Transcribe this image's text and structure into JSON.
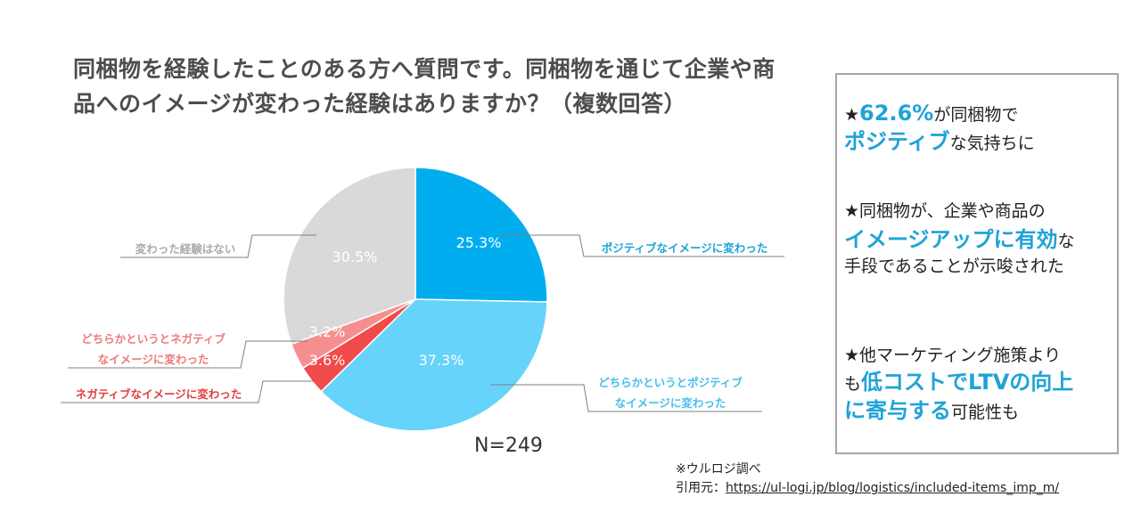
{
  "title": "同梱物を経験したことのある方へ質問です。同梱物を通じて企業や商品へのイメージが変わった経験はありますか？（複数回答）",
  "chart_data": {
    "type": "pie",
    "title": "同梱物を経験したことのある方へ質問です。同梱物を通じて企業や商品へのイメージが変わった経験はありますか？（複数回答）",
    "slices": [
      {
        "label_lines": [
          "ポジティブなイメージに変わった"
        ],
        "value": 25.3,
        "value_label": "25.3%",
        "color": "#00aeef",
        "label_color": "#1ea3d8",
        "side": "right"
      },
      {
        "label_lines": [
          "どちらかというとポジティブ",
          "なイメージに変わった"
        ],
        "value": 37.3,
        "value_label": "37.3%",
        "color": "#66d3fa",
        "label_color": "#46bfea",
        "side": "right"
      },
      {
        "label_lines": [
          "ネガティブなイメージに変わった"
        ],
        "value": 3.6,
        "value_label": "3.6%",
        "color": "#f14a4a",
        "label_color": "#e33c3c",
        "side": "left"
      },
      {
        "label_lines": [
          "どちらかというとネガティブ",
          "なイメージに変わった"
        ],
        "value": 3.2,
        "value_label": "3.2%",
        "color": "#f58f8f",
        "label_color": "#ee7a7a",
        "side": "left"
      },
      {
        "label_lines": [
          "変わった経験はない"
        ],
        "value": 30.5,
        "value_label": "30.5%",
        "color": "#d9d9d9",
        "label_color": "#aaaaaa",
        "side": "left"
      }
    ],
    "n_label": "N=249"
  },
  "source": {
    "line1": "※ウルロジ調べ",
    "prefix": "引用元：",
    "url": "https://ul-logi.jp/blog/logistics/included-items_imp_m/"
  },
  "summary": {
    "p1": {
      "star": "★",
      "pct": "62.6%",
      "rest1": "が同梱物で",
      "positive": "ポジティブ",
      "rest2": "な気持ちに"
    },
    "p2": {
      "line1": "★同梱物が、企業や商品の",
      "hl": "イメージアップに有効",
      "rest": "な",
      "line3": "手段であることが示唆された"
    },
    "p3": {
      "line1": "★他マーケティング施策より",
      "pre": "も",
      "hl1": "低コストでLTVの向上",
      "hl2": "に寄与する",
      "rest": "可能性も"
    }
  },
  "colors": {
    "accent": "#1ea3d8",
    "box_border": "#a6a6a6"
  }
}
